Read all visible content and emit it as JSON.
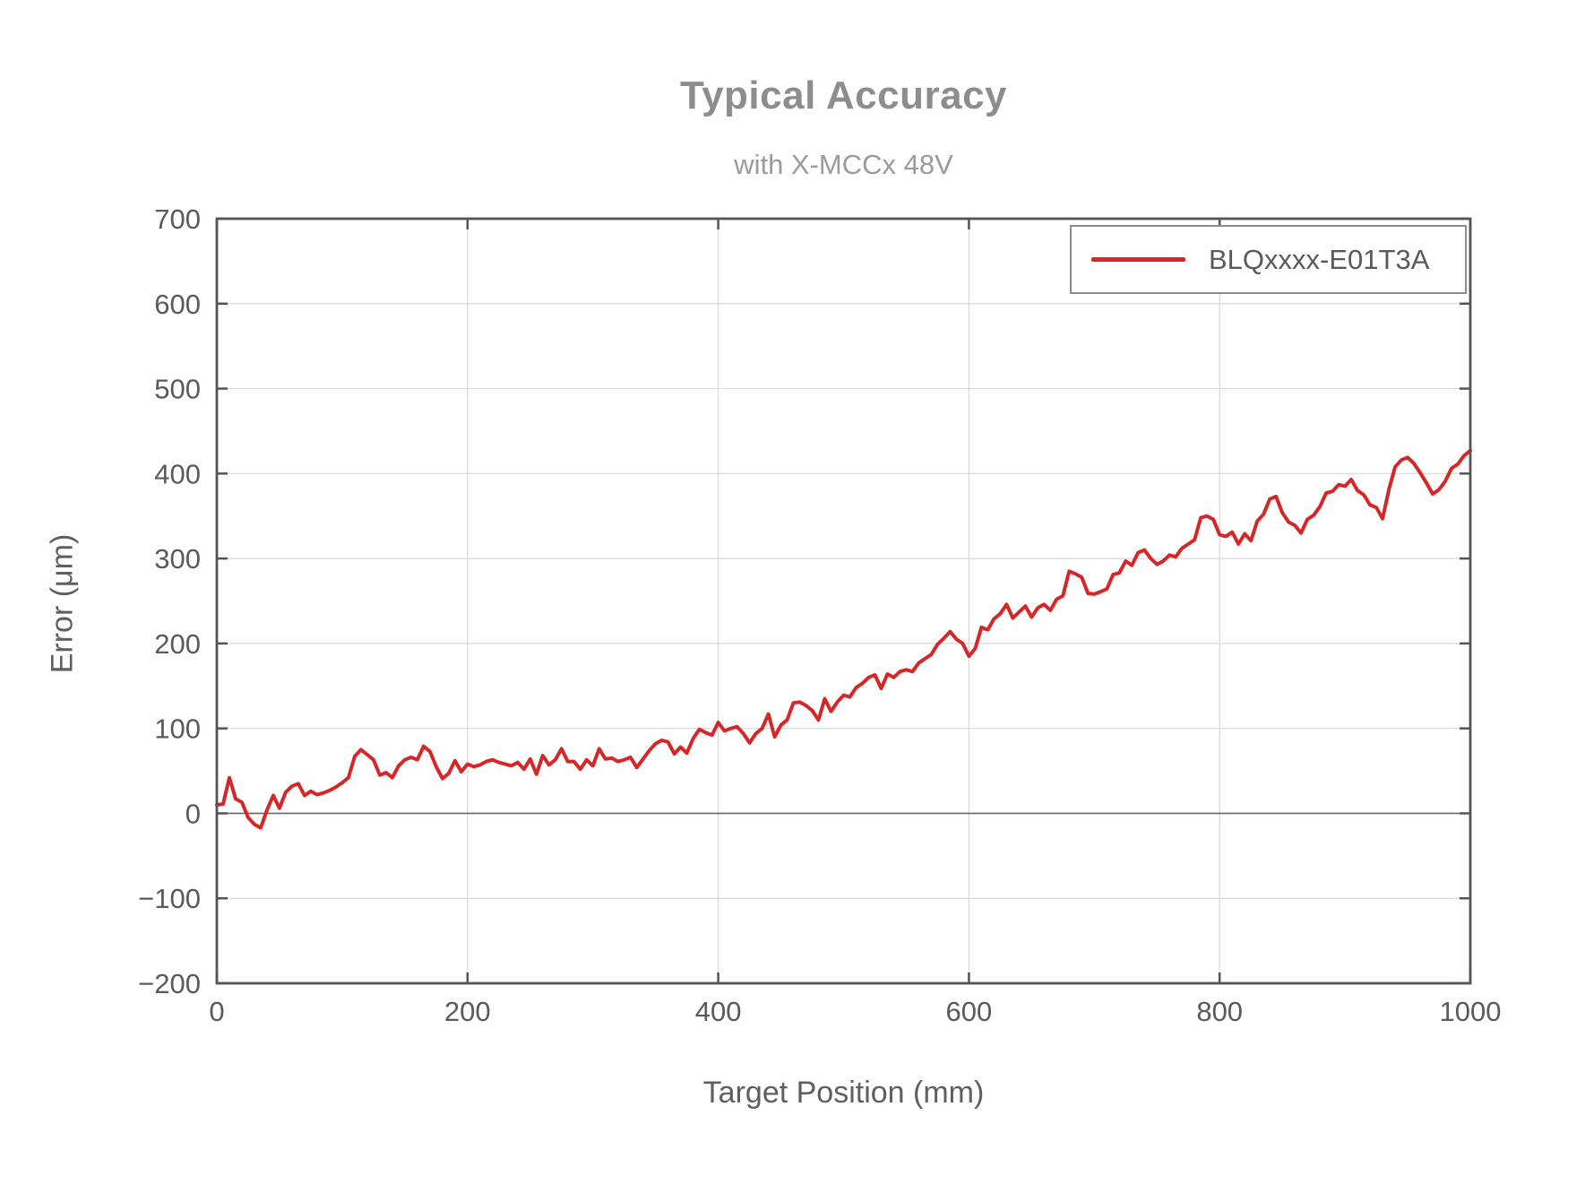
{
  "figure": {
    "title": "Typical Accuracy",
    "subtitle": "with X-MCCx 48V"
  },
  "chart_data": {
    "type": "line",
    "title": "Typical Accuracy",
    "subtitle": "with X-MCCx 48V",
    "xlabel": "Target Position (mm)",
    "ylabel": "Error (μm)",
    "xlim": [
      0,
      1000
    ],
    "ylim": [
      -200,
      700
    ],
    "grid": true,
    "zero_line": true,
    "legend_position": "top-right",
    "xticks": {
      "values": [
        0,
        200,
        400,
        600,
        800,
        1000
      ],
      "labels": [
        "0",
        "200",
        "400",
        "600",
        "800",
        "1000"
      ]
    },
    "yticks": {
      "values": [
        700,
        600,
        500,
        400,
        300,
        200,
        100,
        0,
        -100,
        -200
      ],
      "labels": [
        "700",
        "600",
        "500",
        "400",
        "300",
        "200",
        "100",
        "0",
        "−100",
        "−200"
      ]
    },
    "colors": {
      "series": "#d62728",
      "grid": "#d9d9d9",
      "zero_line": "#666666",
      "axis": "#545454",
      "tick_label": "#5a5a5a",
      "title": "#8d8d8d",
      "subtitle": "#9b9b9b"
    },
    "series": [
      {
        "name": "BLQxxxx-E01T3A",
        "color": "#d62728",
        "x_start": 0,
        "x_step": 5,
        "y": [
          10,
          11,
          42,
          17,
          13,
          -5,
          -13,
          -17,
          4,
          21,
          6,
          25,
          32,
          35,
          21,
          26,
          22,
          24,
          27,
          31,
          36,
          42,
          67,
          75,
          69,
          63,
          45,
          48,
          42,
          56,
          63,
          66,
          63,
          79,
          73,
          55,
          41,
          47,
          62,
          49,
          58,
          55,
          57,
          61,
          63,
          60,
          58,
          56,
          60,
          52,
          64,
          46,
          68,
          57,
          63,
          76,
          61,
          61,
          52,
          63,
          56,
          76,
          64,
          65,
          61,
          63,
          66,
          54,
          64,
          74,
          82,
          86,
          84,
          70,
          78,
          71,
          88,
          99,
          95,
          92,
          107,
          97,
          100,
          102,
          94,
          83,
          94,
          100,
          117,
          90,
          104,
          110,
          130,
          131,
          127,
          121,
          110,
          135,
          120,
          131,
          139,
          137,
          148,
          153,
          160,
          163,
          147,
          164,
          160,
          167,
          169,
          167,
          177,
          182,
          187,
          199,
          206,
          214,
          205,
          200,
          185,
          194,
          219,
          216,
          229,
          235,
          246,
          230,
          237,
          244,
          231,
          242,
          246,
          239,
          252,
          256,
          285,
          282,
          278,
          259,
          258,
          261,
          264,
          281,
          283,
          297,
          292,
          307,
          310,
          300,
          293,
          297,
          304,
          302,
          312,
          317,
          322,
          348,
          350,
          346,
          328,
          326,
          331,
          317,
          329,
          321,
          344,
          352,
          370,
          373,
          354,
          343,
          339,
          330,
          346,
          351,
          361,
          377,
          379,
          387,
          385,
          393,
          380,
          375,
          363,
          360,
          347,
          381,
          408,
          416,
          419,
          412,
          401,
          389,
          376,
          381,
          391,
          406,
          411,
          421,
          427
        ]
      }
    ]
  },
  "legend": {
    "entries": [
      {
        "label": "BLQxxxx-E01T3A",
        "color": "#d62728"
      }
    ]
  }
}
